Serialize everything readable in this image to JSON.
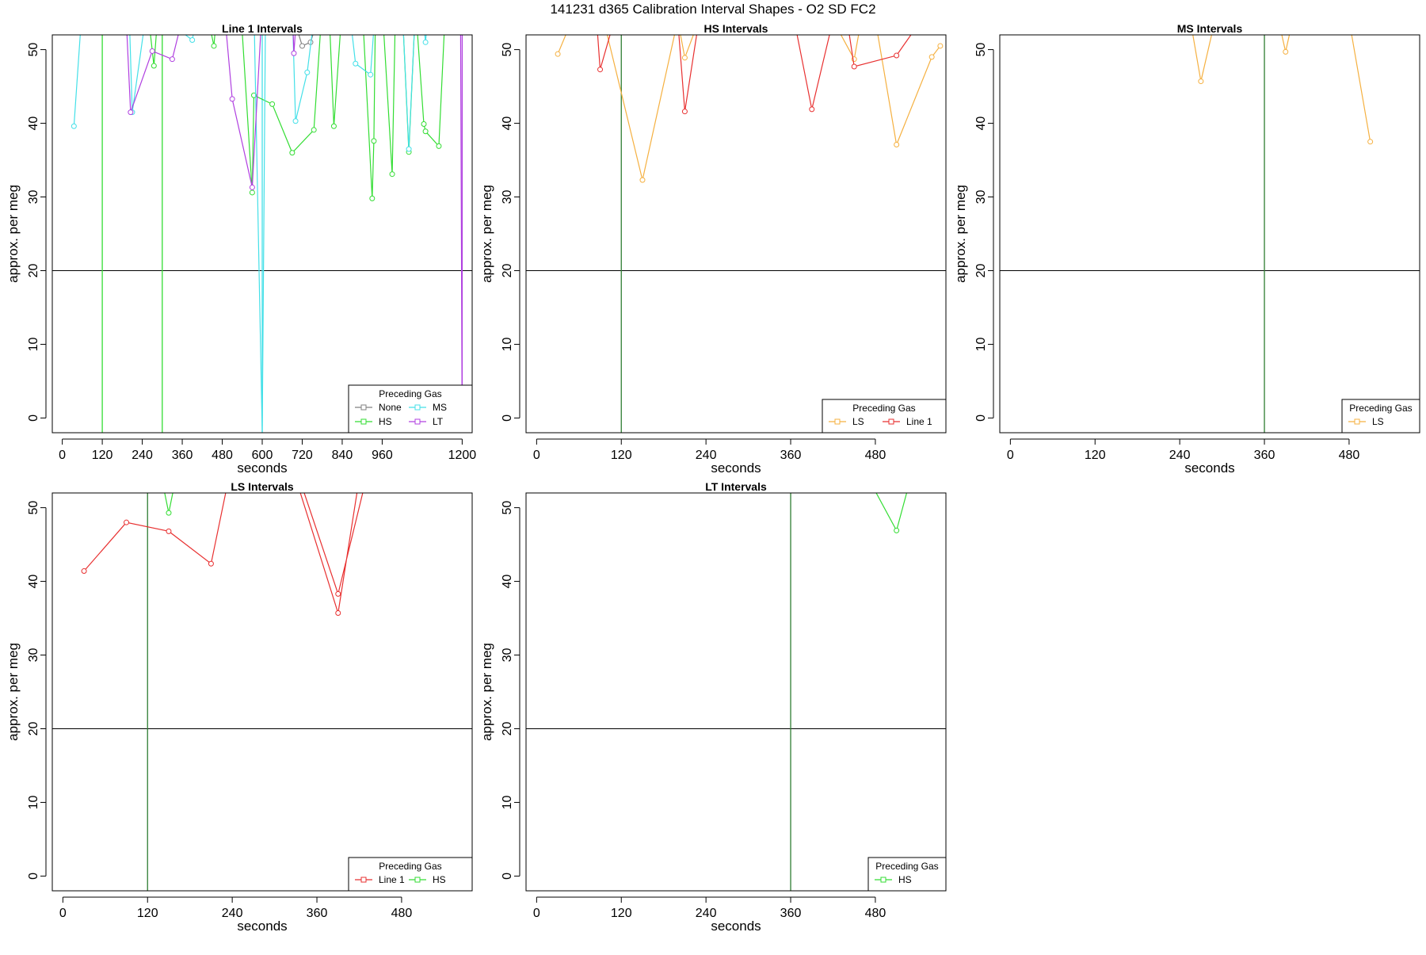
{
  "figure": {
    "title": "141231    d365   Calibration Interval Shapes - O2 SD FC2"
  },
  "colors": {
    "None": "#808080",
    "HS": "#33dd33",
    "MS": "#44e0e8",
    "LT": "#b040e0",
    "LS": "#f5b040",
    "Line 1": "#e83030",
    "ref_vertical": "#2e7d32",
    "ref_horizontal": "#000000"
  },
  "chart_data": [
    {
      "type": "line",
      "title": "Line 1 Intervals",
      "xlabel": "seconds",
      "ylabel": "approx. per meg",
      "xlim": [
        -30,
        1230
      ],
      "ylim": [
        -2,
        52
      ],
      "xticks": [
        0,
        120,
        240,
        360,
        480,
        600,
        720,
        840,
        960,
        1200
      ],
      "yticks": [
        0,
        10,
        20,
        30,
        40,
        50
      ],
      "hline": 20,
      "vlines": [
        {
          "x": 120,
          "series": "HS"
        },
        {
          "x": 300,
          "series": "HS"
        },
        {
          "x": 600,
          "series": "MS"
        },
        {
          "x": 1200,
          "series": "LT"
        }
      ],
      "legend": {
        "title": "Preceding Gas",
        "position": "bottom-right",
        "columns": 2,
        "entries": [
          "None",
          "HS",
          "MS",
          "LT"
        ]
      },
      "series": [
        {
          "name": "None",
          "points": [
            [
              690,
              55
            ],
            [
              720,
              50.5
            ],
            [
              745,
              51
            ],
            [
              780,
              56
            ]
          ]
        },
        {
          "name": "HS",
          "points": [
            [
              255,
              56
            ],
            [
              275,
              47.8
            ],
            [
              282,
              52
            ],
            [
              300,
              56
            ],
            [
              430,
              56
            ],
            [
              455,
              50.5
            ],
            [
              465,
              56
            ],
            [
              535,
              56
            ],
            [
              570,
              30.6
            ],
            [
              575,
              43.8
            ],
            [
              630,
              42.6
            ],
            [
              690,
              36
            ],
            [
              755,
              39.1
            ],
            [
              780,
              56
            ],
            [
              800,
              56
            ],
            [
              815,
              39.6
            ],
            [
              840,
              56
            ],
            [
              875,
              56
            ],
            [
              900,
              56
            ],
            [
              930,
              29.8
            ],
            [
              935,
              37.6
            ],
            [
              940,
              56
            ],
            [
              960,
              56
            ],
            [
              990,
              33.1
            ],
            [
              1000,
              56
            ],
            [
              1020,
              56
            ],
            [
              1040,
              36.1
            ],
            [
              1060,
              56
            ],
            [
              1085,
              39.9
            ],
            [
              1090,
              38.9
            ],
            [
              1130,
              36.9
            ],
            [
              1150,
              56
            ]
          ]
        },
        {
          "name": "MS",
          "points": [
            [
              35,
              39.6
            ],
            [
              60,
              56
            ],
            [
              200,
              56
            ],
            [
              210,
              41.5
            ],
            [
              255,
              56
            ],
            [
              390,
              51.3
            ],
            [
              410,
              56
            ],
            [
              575,
              56
            ],
            [
              600,
              -2
            ],
            [
              610,
              56
            ],
            [
              690,
              56
            ],
            [
              700,
              40.3
            ],
            [
              735,
              46.9
            ],
            [
              760,
              56
            ],
            [
              860,
              56
            ],
            [
              880,
              48.1
            ],
            [
              925,
              46.6
            ],
            [
              940,
              56
            ],
            [
              1020,
              56
            ],
            [
              1040,
              36.5
            ],
            [
              1060,
              56
            ],
            [
              1080,
              56
            ],
            [
              1090,
              51
            ],
            [
              1100,
              56
            ]
          ]
        },
        {
          "name": "LT",
          "points": [
            [
              190,
              56
            ],
            [
              205,
              41.5
            ],
            [
              270,
              49.8
            ],
            [
              330,
              48.7
            ],
            [
              370,
              56
            ],
            [
              485,
              56
            ],
            [
              510,
              43.3
            ],
            [
              570,
              31.3
            ],
            [
              600,
              56
            ],
            [
              690,
              56
            ],
            [
              695,
              49.5
            ],
            [
              705,
              56
            ],
            [
              1195,
              56
            ],
            [
              1200,
              -2
            ]
          ]
        }
      ]
    },
    {
      "type": "line",
      "title": "HS Intervals",
      "xlabel": "seconds",
      "ylabel": "approx. per meg",
      "xlim": [
        -15,
        580
      ],
      "ylim": [
        -2,
        52
      ],
      "xticks": [
        0,
        120,
        240,
        360,
        480
      ],
      "yticks": [
        0,
        10,
        20,
        30,
        40,
        50
      ],
      "hline": 20,
      "vlines": [
        {
          "x": 120,
          "series": "HS"
        }
      ],
      "legend": {
        "title": "Preceding Gas",
        "position": "bottom-right",
        "columns": 2,
        "entries": [
          "LS",
          "Line 1"
        ]
      },
      "series": [
        {
          "name": "LS",
          "points": [
            [
              30,
              49.4
            ],
            [
              50,
              54
            ],
            [
              95,
              54
            ],
            [
              150,
              32.3
            ],
            [
              200,
              54
            ],
            [
              210,
              48.9
            ],
            [
              230,
              54
            ],
            [
              420,
              54
            ],
            [
              450,
              48.7
            ],
            [
              460,
              54
            ],
            [
              480,
              54
            ],
            [
              510,
              37.1
            ],
            [
              560,
              49
            ],
            [
              572,
              50.5
            ]
          ]
        },
        {
          "name": "Line 1",
          "points": [
            [
              85,
              54
            ],
            [
              90,
              47.3
            ],
            [
              110,
              54
            ],
            [
              200,
              54
            ],
            [
              210,
              41.6
            ],
            [
              230,
              54
            ],
            [
              365,
              54
            ],
            [
              390,
              41.9
            ],
            [
              420,
              54
            ],
            [
              440,
              54
            ],
            [
              450,
              47.7
            ],
            [
              510,
              49.2
            ],
            [
              545,
              54
            ]
          ]
        }
      ]
    },
    {
      "type": "line",
      "title": "MS Intervals",
      "xlabel": "seconds",
      "ylabel": "approx. per meg",
      "xlim": [
        -15,
        580
      ],
      "ylim": [
        -2,
        52
      ],
      "xticks": [
        0,
        120,
        240,
        360,
        480
      ],
      "yticks": [
        0,
        10,
        20,
        30,
        40,
        50
      ],
      "hline": 20,
      "vlines": [
        {
          "x": 360,
          "series": "HS"
        }
      ],
      "legend": {
        "title": "Preceding Gas",
        "position": "bottom-right",
        "columns": 1,
        "entries": [
          "LS"
        ]
      },
      "series": [
        {
          "name": "LS",
          "points": [
            [
              255,
              54
            ],
            [
              270,
              45.7
            ],
            [
              290,
              54
            ],
            [
              380,
              54
            ],
            [
              390,
              49.7
            ],
            [
              400,
              54
            ],
            [
              480,
              54
            ],
            [
              510,
              37.5
            ]
          ]
        }
      ]
    },
    {
      "type": "line",
      "title": "LS Intervals",
      "xlabel": "seconds",
      "ylabel": "approx. per meg",
      "xlim": [
        -15,
        580
      ],
      "ylim": [
        -2,
        52
      ],
      "xticks": [
        0,
        120,
        240,
        360,
        480
      ],
      "yticks": [
        0,
        10,
        20,
        30,
        40,
        50
      ],
      "hline": 20,
      "vlines": [
        {
          "x": 120,
          "series": "HS"
        }
      ],
      "legend": {
        "title": "Preceding Gas",
        "position": "bottom-right",
        "columns": 2,
        "entries": [
          "Line 1",
          "HS"
        ]
      },
      "series": [
        {
          "name": "Line 1",
          "points": [
            [
              30,
              41.4
            ],
            [
              90,
              48
            ],
            [
              150,
              46.8
            ],
            [
              210,
              42.4
            ],
            [
              235,
              54
            ],
            [
              330,
              54
            ],
            [
              390,
              35.7
            ],
            [
              420,
              54
            ],
            [
              335,
              54
            ],
            [
              390,
              38.3
            ],
            [
              430,
              54
            ]
          ]
        },
        {
          "name": "HS",
          "points": [
            [
              140,
              54
            ],
            [
              150,
              49.3
            ],
            [
              160,
              54
            ]
          ]
        }
      ]
    },
    {
      "type": "line",
      "title": "LT Intervals",
      "xlabel": "seconds",
      "ylabel": "approx. per meg",
      "xlim": [
        -15,
        580
      ],
      "ylim": [
        -2,
        52
      ],
      "xticks": [
        0,
        120,
        240,
        360,
        480
      ],
      "yticks": [
        0,
        10,
        20,
        30,
        40,
        50
      ],
      "hline": 20,
      "vlines": [
        {
          "x": 360,
          "series": "HS"
        }
      ],
      "legend": {
        "title": "Preceding Gas",
        "position": "bottom-right",
        "columns": 1,
        "entries": [
          "HS"
        ]
      },
      "series": [
        {
          "name": "HS",
          "points": [
            [
              470,
              54
            ],
            [
              510,
              46.9
            ],
            [
              530,
              54
            ]
          ]
        }
      ]
    }
  ]
}
